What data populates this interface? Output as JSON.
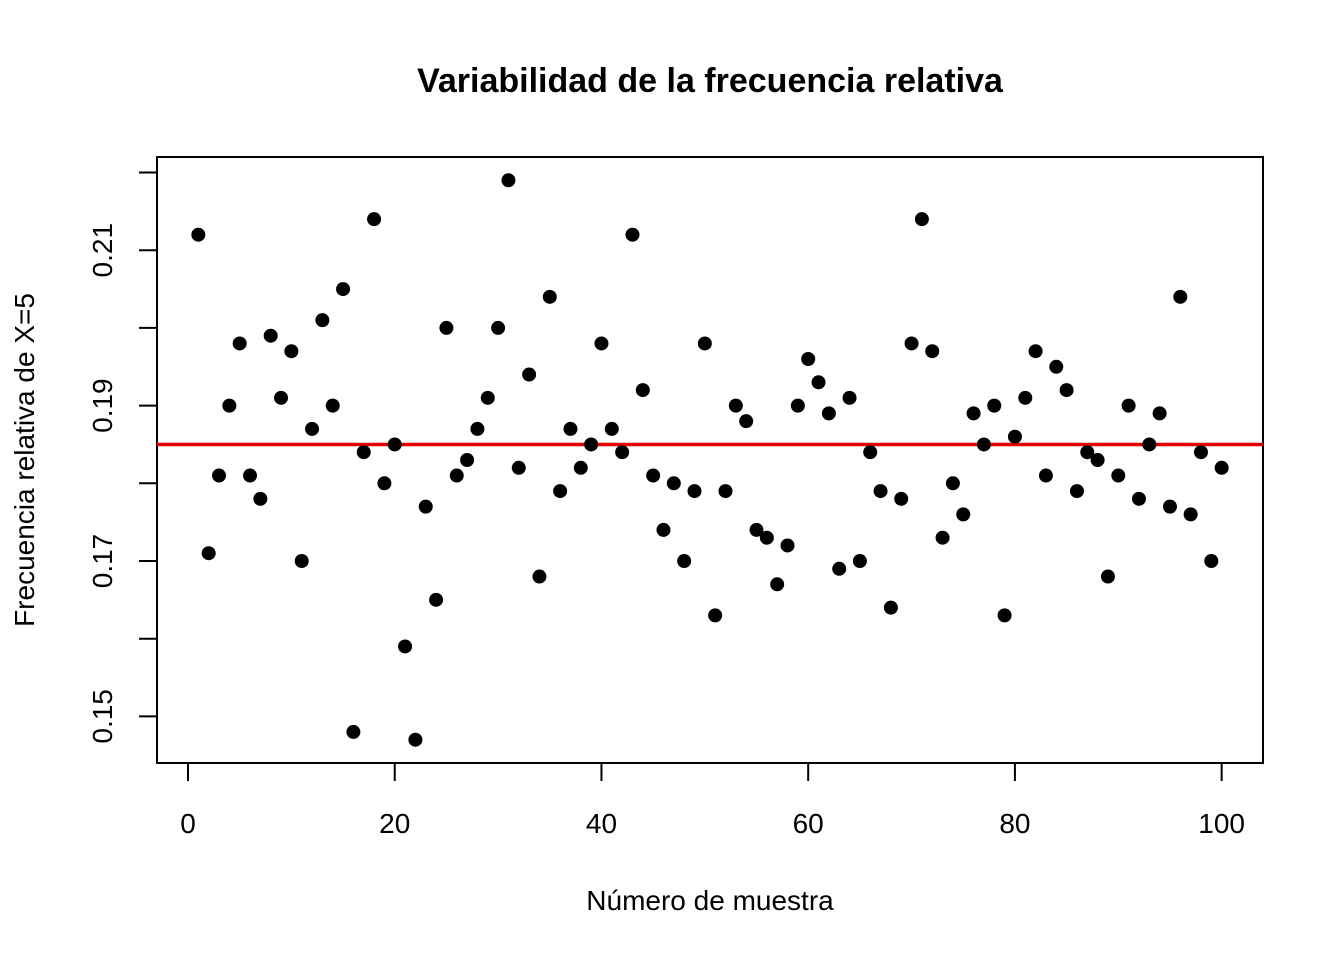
{
  "chart_data": {
    "type": "scatter",
    "title": "Variabilidad de la frecuencia relativa",
    "xlabel": "Número de muestra",
    "ylabel": "Frecuencia relativa de X=5",
    "xlim": [
      -3,
      104
    ],
    "ylim": [
      0.144,
      0.222
    ],
    "x_ticks": [
      0,
      20,
      40,
      60,
      80,
      100
    ],
    "x_tick_labels": [
      "0",
      "20",
      "40",
      "60",
      "80",
      "100"
    ],
    "y_ticks": [
      0.15,
      0.16,
      0.17,
      0.18,
      0.19,
      0.2,
      0.21,
      0.22
    ],
    "y_tick_labels": [
      "0.15",
      "",
      "0.17",
      "",
      "0.19",
      "",
      "0.21",
      ""
    ],
    "grid": false,
    "point_color": "#000000",
    "reference_line": {
      "y": 0.185,
      "color": "#e60000"
    },
    "x": [
      1,
      2,
      3,
      4,
      5,
      6,
      7,
      8,
      9,
      10,
      11,
      12,
      13,
      14,
      15,
      16,
      17,
      18,
      19,
      20,
      21,
      22,
      23,
      24,
      25,
      26,
      27,
      28,
      29,
      30,
      31,
      32,
      33,
      34,
      35,
      36,
      37,
      38,
      39,
      40,
      41,
      42,
      43,
      44,
      45,
      46,
      47,
      48,
      49,
      50,
      51,
      52,
      53,
      54,
      55,
      56,
      57,
      58,
      59,
      60,
      61,
      62,
      63,
      64,
      65,
      66,
      67,
      68,
      69,
      70,
      71,
      72,
      73,
      74,
      75,
      76,
      77,
      78,
      79,
      80,
      81,
      82,
      83,
      84,
      85,
      86,
      87,
      88,
      89,
      90,
      91,
      92,
      93,
      94,
      95,
      96,
      97,
      98,
      99,
      100
    ],
    "y": [
      0.212,
      0.171,
      0.181,
      0.19,
      0.198,
      0.181,
      0.178,
      0.199,
      0.191,
      0.197,
      0.17,
      0.187,
      0.201,
      0.19,
      0.205,
      0.148,
      0.184,
      0.214,
      0.18,
      0.185,
      0.159,
      0.147,
      0.177,
      0.165,
      0.2,
      0.181,
      0.183,
      0.187,
      0.191,
      0.2,
      0.219,
      0.182,
      0.194,
      0.168,
      0.204,
      0.179,
      0.187,
      0.182,
      0.185,
      0.198,
      0.187,
      0.184,
      0.212,
      0.192,
      0.181,
      0.174,
      0.18,
      0.17,
      0.179,
      0.198,
      0.163,
      0.179,
      0.19,
      0.188,
      0.174,
      0.173,
      0.167,
      0.172,
      0.19,
      0.196,
      0.193,
      0.189,
      0.169,
      0.191,
      0.17,
      0.184,
      0.179,
      0.164,
      0.178,
      0.198,
      0.214,
      0.197,
      0.173,
      0.18,
      0.176,
      0.189,
      0.185,
      0.19,
      0.163,
      0.186,
      0.191,
      0.197,
      0.181,
      0.195,
      0.192,
      0.179,
      0.184,
      0.183,
      0.168,
      0.181,
      0.19,
      0.178,
      0.185,
      0.189,
      0.177,
      0.204,
      0.176,
      0.184,
      0.17,
      0.182
    ]
  }
}
